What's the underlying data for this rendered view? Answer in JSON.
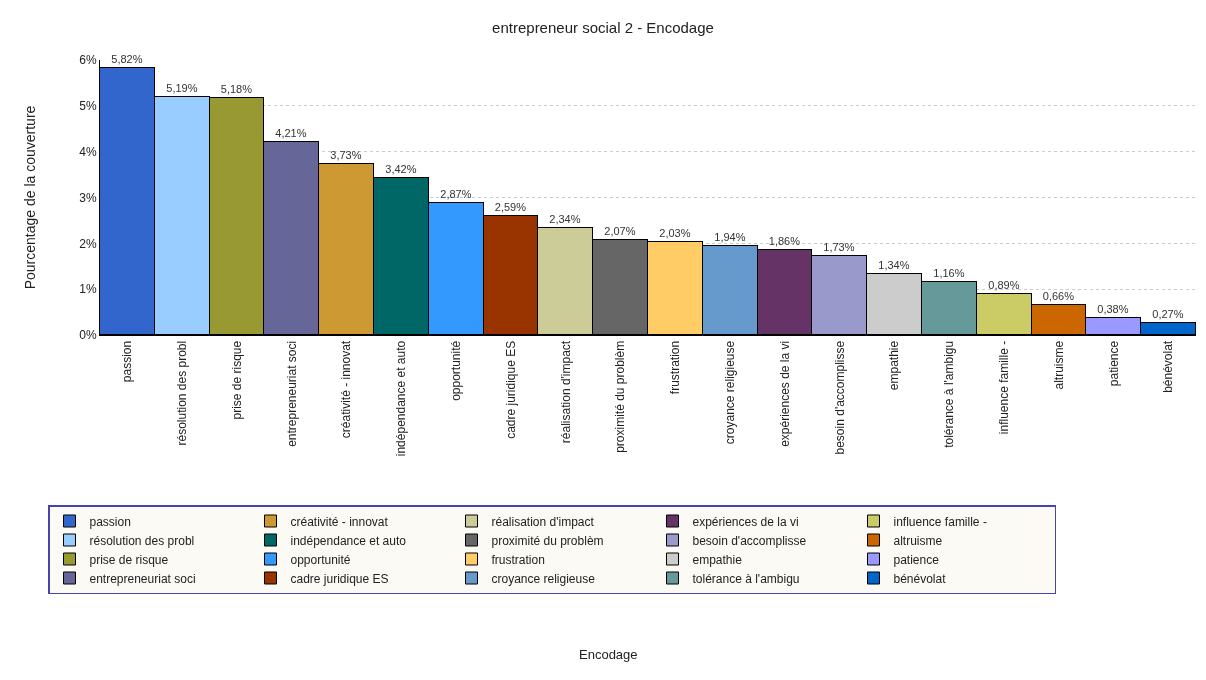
{
  "chart_data": {
    "type": "bar",
    "title": "entrepreneur social 2 - Encodage",
    "annotations": [
      "Encodage"
    ],
    "ylabel": "Pourcentage de la couverture",
    "categories": [
      "passion",
      "résolution des probl",
      "prise de risque",
      "entrepreneuriat soci",
      "créativité - innovat",
      "indépendance et auto",
      "opportunité",
      "cadre juridique ES",
      "réalisation d'impact",
      "proximité du problèm",
      "frustration",
      "croyance religieuse",
      "expériences de la vi",
      "besoin d'accomplisse",
      "empathie",
      "tolérance à l'ambigu",
      "influence famille -",
      "altruisme",
      "patience",
      "bénévolat"
    ],
    "stacked": true,
    "series": [
      {
        "name": "passion",
        "color": "#3366cc",
        "values": [
          5.82,
          null,
          null,
          null,
          null,
          null,
          null,
          null,
          null,
          null,
          null,
          null,
          null,
          null,
          null,
          null,
          null,
          null,
          null,
          null
        ],
        "value_labels": [
          "5,82%",
          null,
          null,
          null,
          null,
          null,
          null,
          null,
          null,
          null,
          null,
          null,
          null,
          null,
          null,
          null,
          null,
          null,
          null,
          null
        ]
      },
      {
        "name": "résolution des probl",
        "color": "#99ccff",
        "values": [
          null,
          5.19,
          null,
          null,
          null,
          null,
          null,
          null,
          null,
          null,
          null,
          null,
          null,
          null,
          null,
          null,
          null,
          null,
          null,
          null
        ],
        "value_labels": [
          null,
          "5,19%",
          null,
          null,
          null,
          null,
          null,
          null,
          null,
          null,
          null,
          null,
          null,
          null,
          null,
          null,
          null,
          null,
          null,
          null
        ]
      },
      {
        "name": "prise de risque",
        "color": "#999933",
        "values": [
          null,
          null,
          5.18,
          null,
          null,
          null,
          null,
          null,
          null,
          null,
          null,
          null,
          null,
          null,
          null,
          null,
          null,
          null,
          null,
          null
        ],
        "value_labels": [
          null,
          null,
          "5,18%",
          null,
          null,
          null,
          null,
          null,
          null,
          null,
          null,
          null,
          null,
          null,
          null,
          null,
          null,
          null,
          null,
          null
        ]
      },
      {
        "name": "entrepreneuriat soci",
        "color": "#666699",
        "values": [
          null,
          null,
          null,
          4.21,
          null,
          null,
          null,
          null,
          null,
          null,
          null,
          null,
          null,
          null,
          null,
          null,
          null,
          null,
          null,
          null
        ],
        "value_labels": [
          null,
          null,
          null,
          "4,21%",
          null,
          null,
          null,
          null,
          null,
          null,
          null,
          null,
          null,
          null,
          null,
          null,
          null,
          null,
          null,
          null
        ]
      },
      {
        "name": "créativité - innovat",
        "color": "#cc9933",
        "values": [
          null,
          null,
          null,
          null,
          3.73,
          null,
          null,
          null,
          null,
          null,
          null,
          null,
          null,
          null,
          null,
          null,
          null,
          null,
          null,
          null
        ],
        "value_labels": [
          null,
          null,
          null,
          null,
          "3,73%",
          null,
          null,
          null,
          null,
          null,
          null,
          null,
          null,
          null,
          null,
          null,
          null,
          null,
          null,
          null
        ]
      },
      {
        "name": "indépendance et auto",
        "color": "#006666",
        "values": [
          null,
          null,
          null,
          null,
          null,
          3.42,
          null,
          null,
          null,
          null,
          null,
          null,
          null,
          null,
          null,
          null,
          null,
          null,
          null,
          null
        ],
        "value_labels": [
          null,
          null,
          null,
          null,
          null,
          "3,42%",
          null,
          null,
          null,
          null,
          null,
          null,
          null,
          null,
          null,
          null,
          null,
          null,
          null,
          null
        ]
      },
      {
        "name": "opportunité",
        "color": "#3399ff",
        "values": [
          null,
          null,
          null,
          null,
          null,
          null,
          2.87,
          null,
          null,
          null,
          null,
          null,
          null,
          null,
          null,
          null,
          null,
          null,
          null,
          null
        ],
        "value_labels": [
          null,
          null,
          null,
          null,
          null,
          null,
          "2,87%",
          null,
          null,
          null,
          null,
          null,
          null,
          null,
          null,
          null,
          null,
          null,
          null,
          null
        ]
      },
      {
        "name": "cadre juridique ES",
        "color": "#993300",
        "values": [
          null,
          null,
          null,
          null,
          null,
          null,
          null,
          2.59,
          null,
          null,
          null,
          null,
          null,
          null,
          null,
          null,
          null,
          null,
          null,
          null
        ],
        "value_labels": [
          null,
          null,
          null,
          null,
          null,
          null,
          null,
          "2,59%",
          null,
          null,
          null,
          null,
          null,
          null,
          null,
          null,
          null,
          null,
          null,
          null
        ]
      },
      {
        "name": "réalisation d'impact",
        "color": "#cccc99",
        "values": [
          null,
          null,
          null,
          null,
          null,
          null,
          null,
          null,
          2.34,
          null,
          null,
          null,
          null,
          null,
          null,
          null,
          null,
          null,
          null,
          null
        ],
        "value_labels": [
          null,
          null,
          null,
          null,
          null,
          null,
          null,
          null,
          "2,34%",
          null,
          null,
          null,
          null,
          null,
          null,
          null,
          null,
          null,
          null,
          null
        ]
      },
      {
        "name": "proximité du problèm",
        "color": "#666666",
        "values": [
          null,
          null,
          null,
          null,
          null,
          null,
          null,
          null,
          null,
          2.07,
          null,
          null,
          null,
          null,
          null,
          null,
          null,
          null,
          null,
          null
        ],
        "value_labels": [
          null,
          null,
          null,
          null,
          null,
          null,
          null,
          null,
          null,
          "2,07%",
          null,
          null,
          null,
          null,
          null,
          null,
          null,
          null,
          null,
          null
        ]
      },
      {
        "name": "frustration",
        "color": "#ffcc66",
        "values": [
          null,
          null,
          null,
          null,
          null,
          null,
          null,
          null,
          null,
          null,
          2.03,
          null,
          null,
          null,
          null,
          null,
          null,
          null,
          null,
          null
        ],
        "value_labels": [
          null,
          null,
          null,
          null,
          null,
          null,
          null,
          null,
          null,
          null,
          "2,03%",
          null,
          null,
          null,
          null,
          null,
          null,
          null,
          null,
          null
        ]
      },
      {
        "name": "croyance religieuse",
        "color": "#6699cc",
        "values": [
          null,
          null,
          null,
          null,
          null,
          null,
          null,
          null,
          null,
          null,
          null,
          1.94,
          null,
          null,
          null,
          null,
          null,
          null,
          null,
          null
        ],
        "value_labels": [
          null,
          null,
          null,
          null,
          null,
          null,
          null,
          null,
          null,
          null,
          null,
          "1,94%",
          null,
          null,
          null,
          null,
          null,
          null,
          null,
          null
        ]
      },
      {
        "name": "expériences de la vi",
        "color": "#663366",
        "values": [
          null,
          null,
          null,
          null,
          null,
          null,
          null,
          null,
          null,
          null,
          null,
          null,
          1.86,
          null,
          null,
          null,
          null,
          null,
          null,
          null
        ],
        "value_labels": [
          null,
          null,
          null,
          null,
          null,
          null,
          null,
          null,
          null,
          null,
          null,
          null,
          "1,86%",
          null,
          null,
          null,
          null,
          null,
          null,
          null
        ]
      },
      {
        "name": "besoin d'accomplisse",
        "color": "#9999cc",
        "values": [
          null,
          null,
          null,
          null,
          null,
          null,
          null,
          null,
          null,
          null,
          null,
          null,
          null,
          1.73,
          null,
          null,
          null,
          null,
          null,
          null
        ],
        "value_labels": [
          null,
          null,
          null,
          null,
          null,
          null,
          null,
          null,
          null,
          null,
          null,
          null,
          null,
          "1,73%",
          null,
          null,
          null,
          null,
          null,
          null
        ]
      },
      {
        "name": "empathie",
        "color": "#cccccc",
        "values": [
          null,
          null,
          null,
          null,
          null,
          null,
          null,
          null,
          null,
          null,
          null,
          null,
          null,
          null,
          1.34,
          null,
          null,
          null,
          null,
          null
        ],
        "value_labels": [
          null,
          null,
          null,
          null,
          null,
          null,
          null,
          null,
          null,
          null,
          null,
          null,
          null,
          null,
          "1,34%",
          null,
          null,
          null,
          null,
          null
        ]
      },
      {
        "name": "tolérance à l'ambigu",
        "color": "#669999",
        "values": [
          null,
          null,
          null,
          null,
          null,
          null,
          null,
          null,
          null,
          null,
          null,
          null,
          null,
          null,
          null,
          1.16,
          null,
          null,
          null,
          null
        ],
        "value_labels": [
          null,
          null,
          null,
          null,
          null,
          null,
          null,
          null,
          null,
          null,
          null,
          null,
          null,
          null,
          null,
          "1,16%",
          null,
          null,
          null,
          null
        ]
      },
      {
        "name": "influence famille -",
        "color": "#cccc66",
        "values": [
          null,
          null,
          null,
          null,
          null,
          null,
          null,
          null,
          null,
          null,
          null,
          null,
          null,
          null,
          null,
          null,
          0.89,
          null,
          null,
          null
        ],
        "value_labels": [
          null,
          null,
          null,
          null,
          null,
          null,
          null,
          null,
          null,
          null,
          null,
          null,
          null,
          null,
          null,
          null,
          "0,89%",
          null,
          null,
          null
        ]
      },
      {
        "name": "altruisme",
        "color": "#cc6600",
        "values": [
          null,
          null,
          null,
          null,
          null,
          null,
          null,
          null,
          null,
          null,
          null,
          null,
          null,
          null,
          null,
          null,
          null,
          0.66,
          null,
          null
        ],
        "value_labels": [
          null,
          null,
          null,
          null,
          null,
          null,
          null,
          null,
          null,
          null,
          null,
          null,
          null,
          null,
          null,
          null,
          null,
          "0,66%",
          null,
          null
        ]
      },
      {
        "name": "patience",
        "color": "#9999ff",
        "values": [
          null,
          null,
          null,
          null,
          null,
          null,
          null,
          null,
          null,
          null,
          null,
          null,
          null,
          null,
          null,
          null,
          null,
          null,
          0.38,
          null
        ],
        "value_labels": [
          null,
          null,
          null,
          null,
          null,
          null,
          null,
          null,
          null,
          null,
          null,
          null,
          null,
          null,
          null,
          null,
          null,
          null,
          "0,38%",
          null
        ]
      },
      {
        "name": "bénévolat",
        "color": "#0066cc",
        "values": [
          null,
          null,
          null,
          null,
          null,
          null,
          null,
          null,
          null,
          null,
          null,
          null,
          null,
          null,
          null,
          null,
          null,
          null,
          null,
          0.27
        ],
        "value_labels": [
          null,
          null,
          null,
          null,
          null,
          null,
          null,
          null,
          null,
          null,
          null,
          null,
          null,
          null,
          null,
          null,
          null,
          null,
          null,
          "0,27%"
        ]
      }
    ],
    "ylim": [
      0,
      6
    ],
    "yticks": [
      {
        "value": 0,
        "label": "0%"
      },
      {
        "value": 1,
        "label": "1%"
      },
      {
        "value": 2,
        "label": "2%"
      },
      {
        "value": 3,
        "label": "3%"
      },
      {
        "value": 4,
        "label": "4%"
      },
      {
        "value": 5,
        "label": "5%"
      },
      {
        "value": 6,
        "label": "6%"
      }
    ],
    "grid": "y",
    "legend": "bottom"
  }
}
